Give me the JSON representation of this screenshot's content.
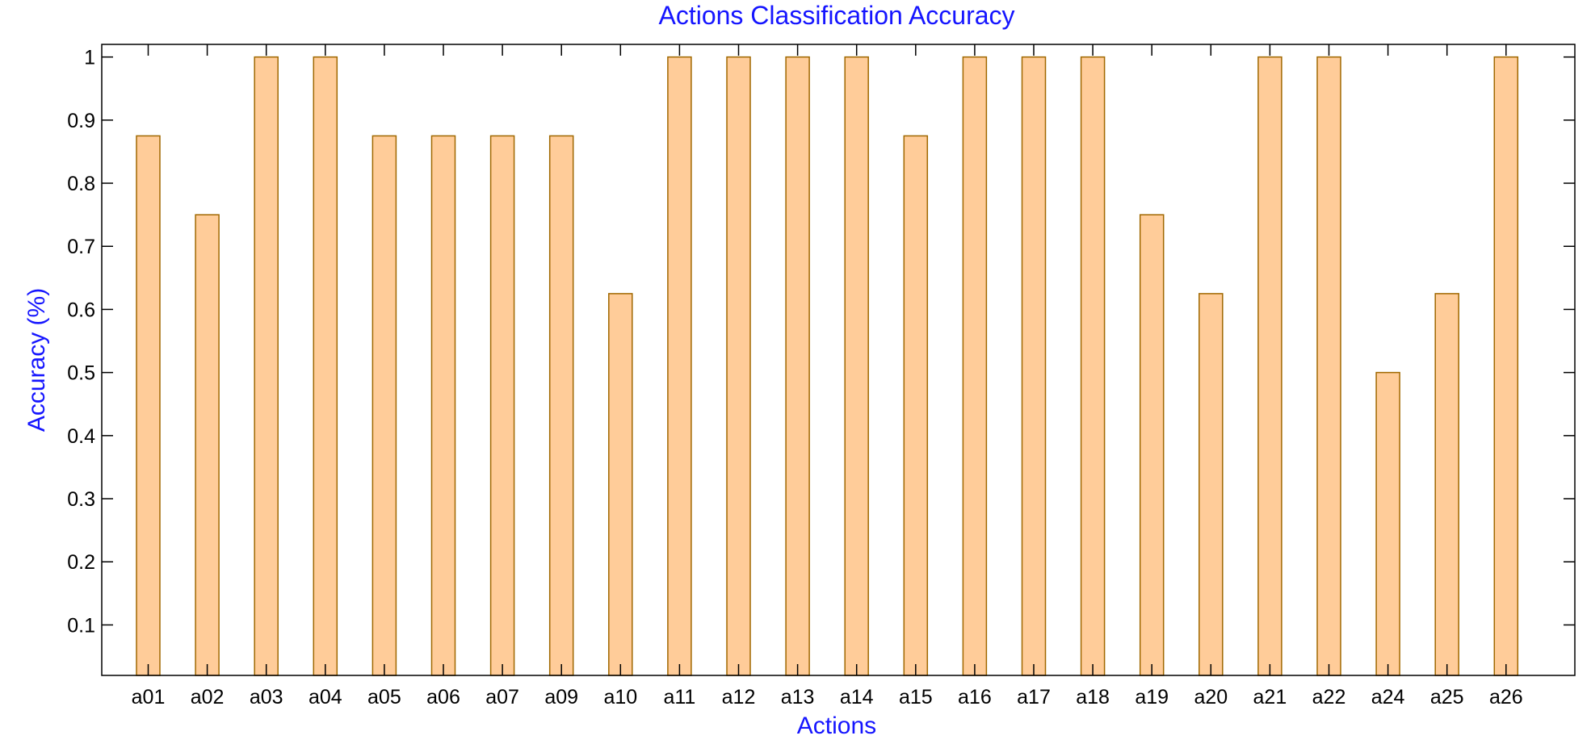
{
  "chart_data": {
    "type": "bar",
    "title": "Actions Classification Accuracy",
    "xlabel": "Actions",
    "ylabel": "Accuracy (%)",
    "categories": [
      "a01",
      "a02",
      "a03",
      "a04",
      "a05",
      "a06",
      "a07",
      "a09",
      "a10",
      "a11",
      "a12",
      "a13",
      "a14",
      "a15",
      "a16",
      "a17",
      "a18",
      "a19",
      "a20",
      "a21",
      "a22",
      "a24",
      "a25",
      "a26"
    ],
    "values": [
      0.875,
      0.75,
      1,
      1,
      0.875,
      0.875,
      0.875,
      0.875,
      0.625,
      1,
      1,
      1,
      1,
      0.875,
      1,
      1,
      1,
      0.75,
      0.625,
      1,
      1,
      0.5,
      0.625,
      1
    ],
    "ylim": [
      0.02,
      1.02
    ],
    "yticks": [
      0.1,
      0.2,
      0.3,
      0.4,
      0.5,
      0.6,
      0.7,
      0.8,
      0.9,
      1
    ],
    "ytick_labels": [
      "0.1",
      "0.2",
      "0.3",
      "0.4",
      "0.5",
      "0.6",
      "0.7",
      "0.8",
      "0.9",
      "1"
    ],
    "grid": false,
    "colors": {
      "bar_fill": "#ffcc99",
      "bar_edge": "#a06800",
      "text_accent": "#1515ff"
    }
  }
}
